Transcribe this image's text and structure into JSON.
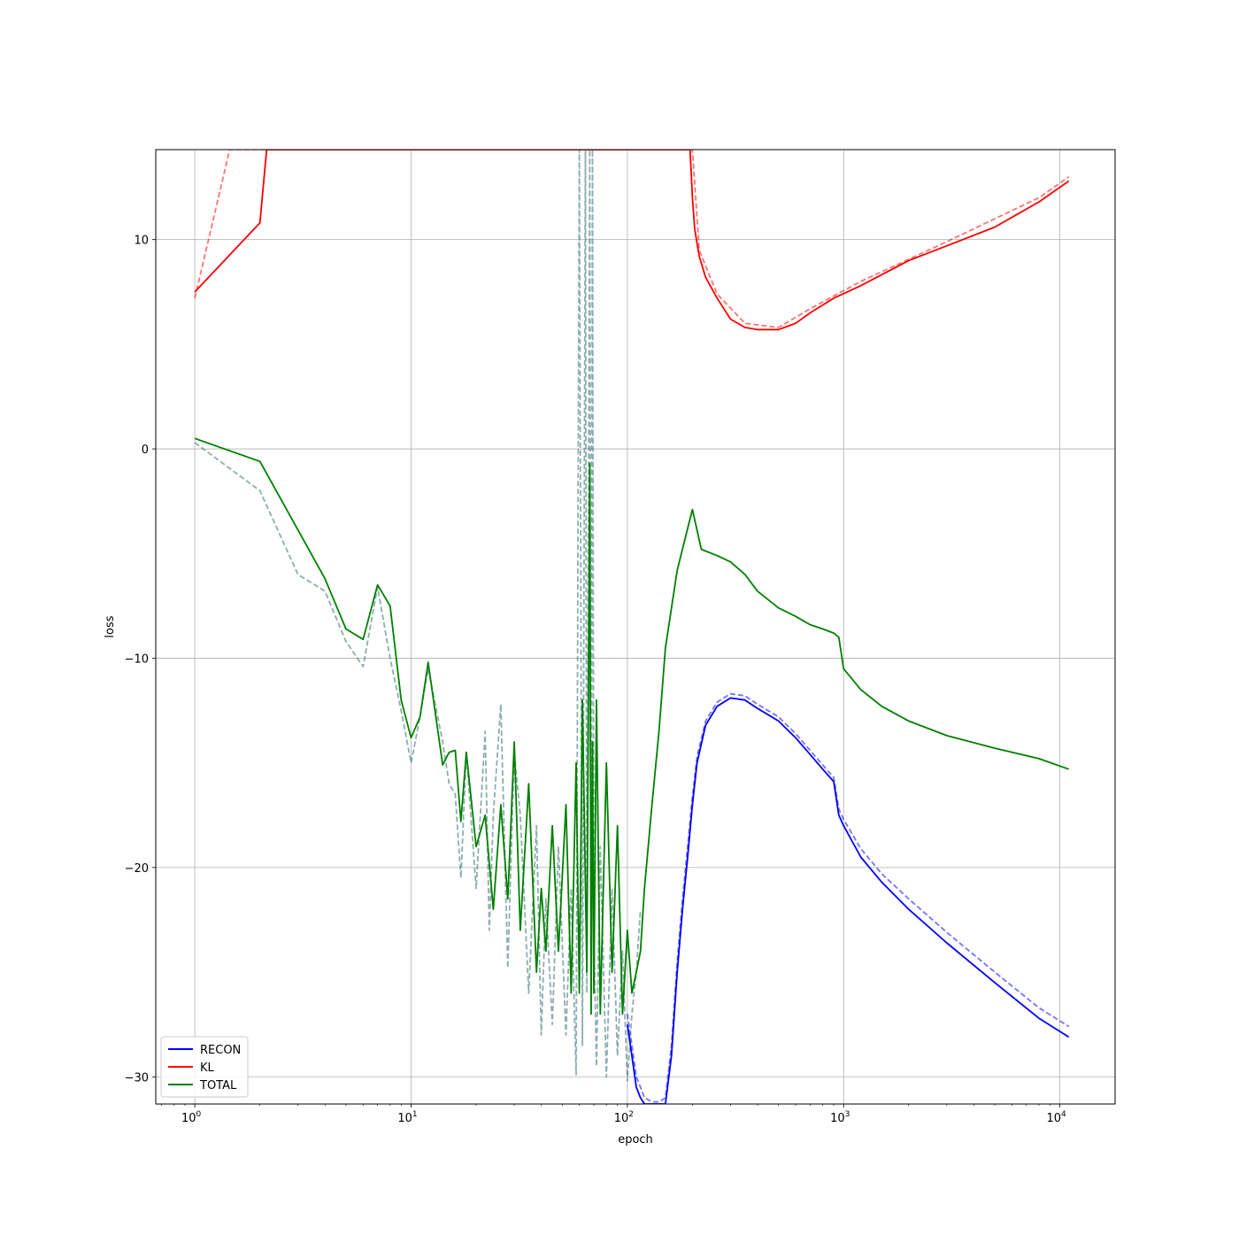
{
  "chart_data": {
    "type": "line",
    "title": "",
    "xlabel": "epoch",
    "ylabel": "loss",
    "x_scale": "log",
    "xlim": [
      0.66,
      18000
    ],
    "ylim": [
      -31.3,
      14.3
    ],
    "grid": true,
    "legend_position": "lower-left",
    "x_ticks": [
      {
        "value": 1,
        "base": "10",
        "exp": "0"
      },
      {
        "value": 10,
        "base": "10",
        "exp": "1"
      },
      {
        "value": 100,
        "base": "10",
        "exp": "2"
      },
      {
        "value": 1000,
        "base": "10",
        "exp": "3"
      },
      {
        "value": 10000,
        "base": "10",
        "exp": "4"
      }
    ],
    "y_ticks": [
      {
        "value": 10,
        "label": "10"
      },
      {
        "value": 0,
        "label": "0"
      },
      {
        "value": -10,
        "label": "−10"
      },
      {
        "value": -20,
        "label": "−20"
      },
      {
        "value": -30,
        "label": "−30"
      }
    ],
    "series": [
      {
        "name": "RECON",
        "color": "#0000ff",
        "in_legend": true,
        "style": "solid",
        "x": [
          100,
          105,
          110,
          115,
          120,
          130,
          140,
          150,
          160,
          170,
          180,
          190,
          200,
          210,
          230,
          260,
          300,
          350,
          400,
          500,
          600,
          700,
          800,
          900,
          950,
          1000,
          1200,
          1500,
          2000,
          3000,
          5000,
          8000,
          11000
        ],
        "y": [
          -27.5,
          -29,
          -30.5,
          -31,
          -31.3,
          -31.3,
          -31.3,
          -31.3,
          -29,
          -25,
          -22,
          -19.5,
          -17,
          -15,
          -13.2,
          -12.3,
          -11.9,
          -12,
          -12.4,
          -13,
          -13.8,
          -14.6,
          -15.3,
          -15.9,
          -17.5,
          -18,
          -19.5,
          -20.7,
          -22,
          -23.6,
          -25.5,
          -27.2,
          -28.1
        ]
      },
      {
        "name": "RECON (val)",
        "color": "#0000ff",
        "in_legend": false,
        "style": "dashed",
        "x": [
          100,
          105,
          110,
          115,
          120,
          130,
          140,
          150,
          160,
          170,
          180,
          190,
          200,
          210,
          230,
          260,
          300,
          350,
          400,
          500,
          600,
          700,
          800,
          900,
          950,
          1000,
          1200,
          1500,
          2000,
          3000,
          5000,
          8000,
          11000
        ],
        "y": [
          -27,
          -28.5,
          -30,
          -30.5,
          -31,
          -31.2,
          -31.2,
          -31,
          -28.5,
          -24.5,
          -21.5,
          -19,
          -16.6,
          -14.7,
          -13,
          -12.1,
          -11.7,
          -11.8,
          -12.2,
          -12.8,
          -13.6,
          -14.4,
          -15.1,
          -15.7,
          -17.2,
          -17.7,
          -19.1,
          -20.3,
          -21.5,
          -23.1,
          -25,
          -26.7,
          -27.6
        ]
      },
      {
        "name": "KL",
        "color": "#ff0000",
        "in_legend": true,
        "style": "solid",
        "x": [
          1,
          2,
          2.15,
          195,
          200,
          205,
          215,
          230,
          260,
          300,
          350,
          400,
          500,
          600,
          700,
          900,
          1200,
          2000,
          3000,
          5000,
          8000,
          11000
        ],
        "y": [
          7.5,
          10.8,
          14.3,
          14.3,
          12,
          10.5,
          9.2,
          8.2,
          7.2,
          6.2,
          5.8,
          5.7,
          5.7,
          6.0,
          6.5,
          7.2,
          7.8,
          9.0,
          9.7,
          10.6,
          11.8,
          12.8
        ]
      },
      {
        "name": "KL (val)",
        "color": "#ff0000",
        "in_legend": false,
        "style": "dashed",
        "x": [
          1,
          1.45,
          200,
          215,
          260,
          350,
          500,
          700,
          1200,
          3000,
          8000,
          11000
        ],
        "y": [
          7.2,
          14.3,
          14.3,
          9.5,
          7.4,
          6.0,
          5.8,
          6.7,
          8.0,
          9.9,
          12.0,
          13.0
        ]
      },
      {
        "name": "TOTAL",
        "color": "#008000",
        "in_legend": true,
        "style": "solid",
        "x": [
          1,
          2,
          4,
          5,
          6,
          7,
          8,
          9,
          10,
          11,
          12,
          14,
          15,
          16,
          17,
          18,
          20,
          22,
          24,
          26,
          28,
          30,
          32,
          35,
          38,
          40,
          42,
          45,
          48,
          52,
          55,
          58,
          60,
          62,
          65,
          67,
          68,
          69,
          70,
          72,
          75,
          80,
          85,
          90,
          95,
          100,
          105,
          110,
          115,
          120,
          130,
          140,
          150,
          170,
          190,
          200,
          220,
          260,
          300,
          350,
          400,
          500,
          600,
          700,
          800,
          900,
          950,
          1000,
          1200,
          1500,
          2000,
          3000,
          5000,
          8000,
          11000
        ],
        "y": [
          0.5,
          -0.6,
          -6.2,
          -8.6,
          -9.1,
          -6.5,
          -7.5,
          -12,
          -13.8,
          -12.8,
          -10.2,
          -15.1,
          -14.5,
          -14.4,
          -17.8,
          -14.5,
          -19,
          -17.5,
          -22,
          -17,
          -21.5,
          -14,
          -23,
          -16,
          -25,
          -21,
          -24,
          -18,
          -24,
          -17,
          -26,
          -15,
          -26,
          -12,
          -25,
          -0.7,
          -27,
          -14,
          -26,
          -12,
          -27,
          -15,
          -25,
          -18,
          -27,
          -23,
          -26,
          -25,
          -24,
          -21,
          -17,
          -13.5,
          -9.5,
          -5.8,
          -3.8,
          -2.9,
          -4.8,
          -5.1,
          -5.4,
          -6.0,
          -6.8,
          -7.6,
          -8.0,
          -8.4,
          -8.6,
          -8.8,
          -9.0,
          -10.5,
          -11.5,
          -12.3,
          -13.0,
          -13.7,
          -14.3,
          -14.8,
          -15.3
        ]
      },
      {
        "name": "TOTAL (val)",
        "color": "#2e6b6b",
        "in_legend": false,
        "style": "dashed",
        "x": [
          1,
          2,
          3,
          4,
          5,
          6,
          7,
          8,
          9,
          10,
          11,
          12,
          14,
          15,
          16,
          17,
          18,
          20,
          22,
          23,
          24,
          26,
          28,
          30,
          32,
          35,
          38,
          40,
          42,
          45,
          48,
          52,
          55,
          58,
          60,
          62,
          64,
          65,
          67,
          68,
          69,
          70,
          72,
          75,
          80,
          85,
          90,
          95,
          100,
          105,
          110,
          115
        ],
        "y": [
          0.3,
          -2,
          -6,
          -6.8,
          -9.2,
          -10.4,
          -6.6,
          -10,
          -12.5,
          -15,
          -12.8,
          -10.5,
          -14,
          -16,
          -16.5,
          -20.5,
          -14.5,
          -21,
          -13.5,
          -23,
          -17.5,
          -12.2,
          -24.8,
          -14.5,
          -17.5,
          -26,
          -18,
          -28,
          -21.5,
          -27.5,
          -19,
          -28,
          -21,
          -29.9,
          14.3,
          -28.5,
          14.3,
          -26,
          14.3,
          -27,
          14.3,
          -23,
          -29.5,
          -19,
          -30,
          -21,
          -29,
          -24,
          -30.2,
          -27,
          -25,
          -22
        ]
      }
    ],
    "legend": [
      {
        "label": "RECON",
        "color": "#0000ff"
      },
      {
        "label": "KL",
        "color": "#ff0000"
      },
      {
        "label": "TOTAL",
        "color": "#008000"
      }
    ]
  }
}
